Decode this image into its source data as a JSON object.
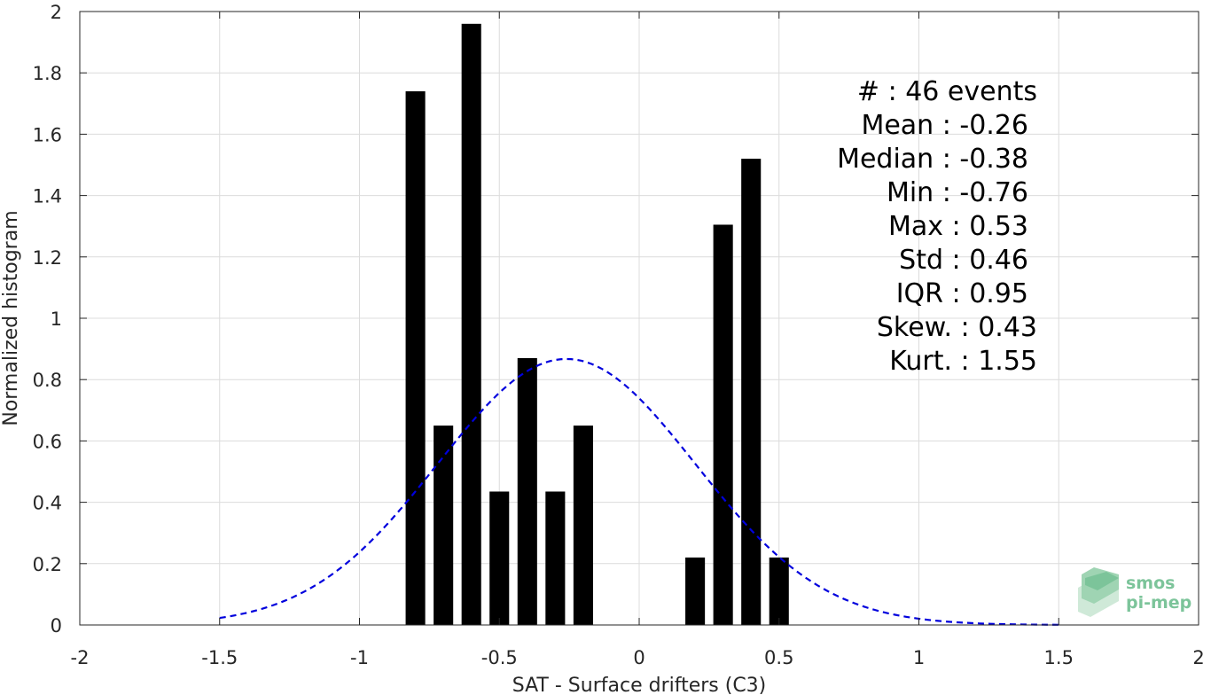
{
  "chart_data": {
    "type": "bar",
    "title": "",
    "xlabel": "SAT - Surface drifters (C3)",
    "ylabel": "Normalized histogram",
    "xlim": [
      -2,
      2
    ],
    "ylim": [
      0,
      2
    ],
    "grid": true,
    "bar_width": 0.07,
    "bar_color": "#000000",
    "xticks": [
      -2,
      -1.5,
      -1,
      -0.5,
      0,
      0.5,
      1,
      1.5,
      2
    ],
    "xtick_labels": [
      "-2",
      "-1.5",
      "-1",
      "-0.5",
      "0",
      "0.5",
      "1",
      "1.5",
      "2"
    ],
    "yticks": [
      0,
      0.2,
      0.4,
      0.6,
      0.8,
      1,
      1.2,
      1.4,
      1.6,
      1.8,
      2
    ],
    "ytick_labels": [
      "0",
      "0.2",
      "0.4",
      "0.6",
      "0.8",
      "1",
      "1.2",
      "1.4",
      "1.6",
      "1.8",
      "2"
    ],
    "bars": [
      {
        "x": -0.8,
        "y": 1.74
      },
      {
        "x": -0.7,
        "y": 0.65
      },
      {
        "x": -0.6,
        "y": 1.96
      },
      {
        "x": -0.5,
        "y": 0.435
      },
      {
        "x": -0.4,
        "y": 0.87
      },
      {
        "x": -0.3,
        "y": 0.435
      },
      {
        "x": -0.2,
        "y": 0.65
      },
      {
        "x": 0.2,
        "y": 0.22
      },
      {
        "x": 0.3,
        "y": 1.305
      },
      {
        "x": 0.4,
        "y": 1.52
      },
      {
        "x": 0.5,
        "y": 0.22
      }
    ],
    "fit_curve": {
      "type": "normal",
      "mean": -0.26,
      "std": 0.46,
      "x_range": [
        -1.5,
        1.5
      ],
      "color": "#0000dd",
      "style": "dashed"
    }
  },
  "stats": [
    {
      "label": "#  : 46 events"
    },
    {
      "label": "Mean : -0.26"
    },
    {
      "label": "Median : -0.38"
    },
    {
      "label": "Min : -0.76"
    },
    {
      "label": "Max : 0.53"
    },
    {
      "label": "Std : 0.46"
    },
    {
      "label": "IQR : 0.95"
    },
    {
      "label": "Skew. : 0.43"
    },
    {
      "label": "Kurt. : 1.55"
    }
  ],
  "logo": {
    "line1": "smos",
    "line2": "pi-mep",
    "color": "#7cc49a"
  }
}
